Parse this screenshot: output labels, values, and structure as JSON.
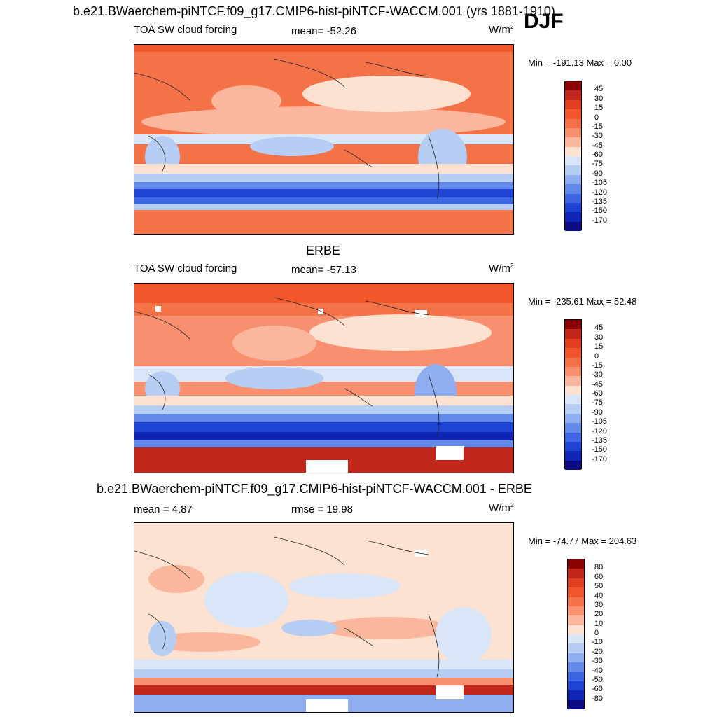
{
  "figure": {
    "main_title": "b.e21.BWaerchem-piNTCF.f09_g17.CMIP6-hist-piNTCF-WACCM.001 (yrs 1881-1910)",
    "season": "DJF"
  },
  "panels": [
    {
      "id": "model",
      "left_label": "TOA SW cloud forcing",
      "center_label": "mean= -52.26",
      "units": "W/m",
      "units_sup": "2",
      "minmax": "Min = -191.13 Max =   0.00",
      "colorbar": {
        "labels": [
          "45",
          "30",
          "15",
          "0",
          "-15",
          "-30",
          "-45",
          "-60",
          "-75",
          "-90",
          "-105",
          "-120",
          "-135",
          "-150",
          "-170"
        ],
        "colors": [
          "#8b0000",
          "#c1271a",
          "#e0401f",
          "#f2572c",
          "#f47247",
          "#f89070",
          "#fbb79d",
          "#fde2d1",
          "#d8e6f7",
          "#b6cdf4",
          "#8eaef0",
          "#6389eb",
          "#3c66e2",
          "#1f44d3",
          "#0f26b5",
          "#0b0a82"
        ]
      }
    },
    {
      "id": "obs",
      "title": "ERBE",
      "left_label": "TOA SW cloud forcing",
      "center_label": "mean= -57.13",
      "units": "W/m",
      "units_sup": "2",
      "minmax": "Min = -235.61 Max =  52.48",
      "colorbar": {
        "labels": [
          "45",
          "30",
          "15",
          "0",
          "-15",
          "-30",
          "-45",
          "-60",
          "-75",
          "-90",
          "-105",
          "-120",
          "-135",
          "-150",
          "-170"
        ],
        "colors": [
          "#8b0000",
          "#c1271a",
          "#e0401f",
          "#f2572c",
          "#f47247",
          "#f89070",
          "#fbb79d",
          "#fde2d1",
          "#d8e6f7",
          "#b6cdf4",
          "#8eaef0",
          "#6389eb",
          "#3c66e2",
          "#1f44d3",
          "#0f26b5",
          "#0b0a82"
        ]
      }
    },
    {
      "id": "diff",
      "title": "b.e21.BWaerchem-piNTCF.f09_g17.CMIP6-hist-piNTCF-WACCM.001 - ERBE",
      "left_label": "mean =   4.87",
      "center_label": "rmse =  19.98",
      "units": "W/m",
      "units_sup": "2",
      "minmax": "Min = -74.77 Max = 204.63",
      "colorbar": {
        "labels": [
          "80",
          "60",
          "50",
          "40",
          "30",
          "20",
          "10",
          "0",
          "-10",
          "-20",
          "-30",
          "-40",
          "-50",
          "-60",
          "-80"
        ],
        "colors": [
          "#8b0000",
          "#c1271a",
          "#e0401f",
          "#f2572c",
          "#f47247",
          "#f89070",
          "#fbb79d",
          "#fde2d1",
          "#d8e6f7",
          "#b6cdf4",
          "#8eaef0",
          "#6389eb",
          "#3c66e2",
          "#1f44d3",
          "#0f26b5",
          "#0b0a82"
        ]
      }
    }
  ]
}
